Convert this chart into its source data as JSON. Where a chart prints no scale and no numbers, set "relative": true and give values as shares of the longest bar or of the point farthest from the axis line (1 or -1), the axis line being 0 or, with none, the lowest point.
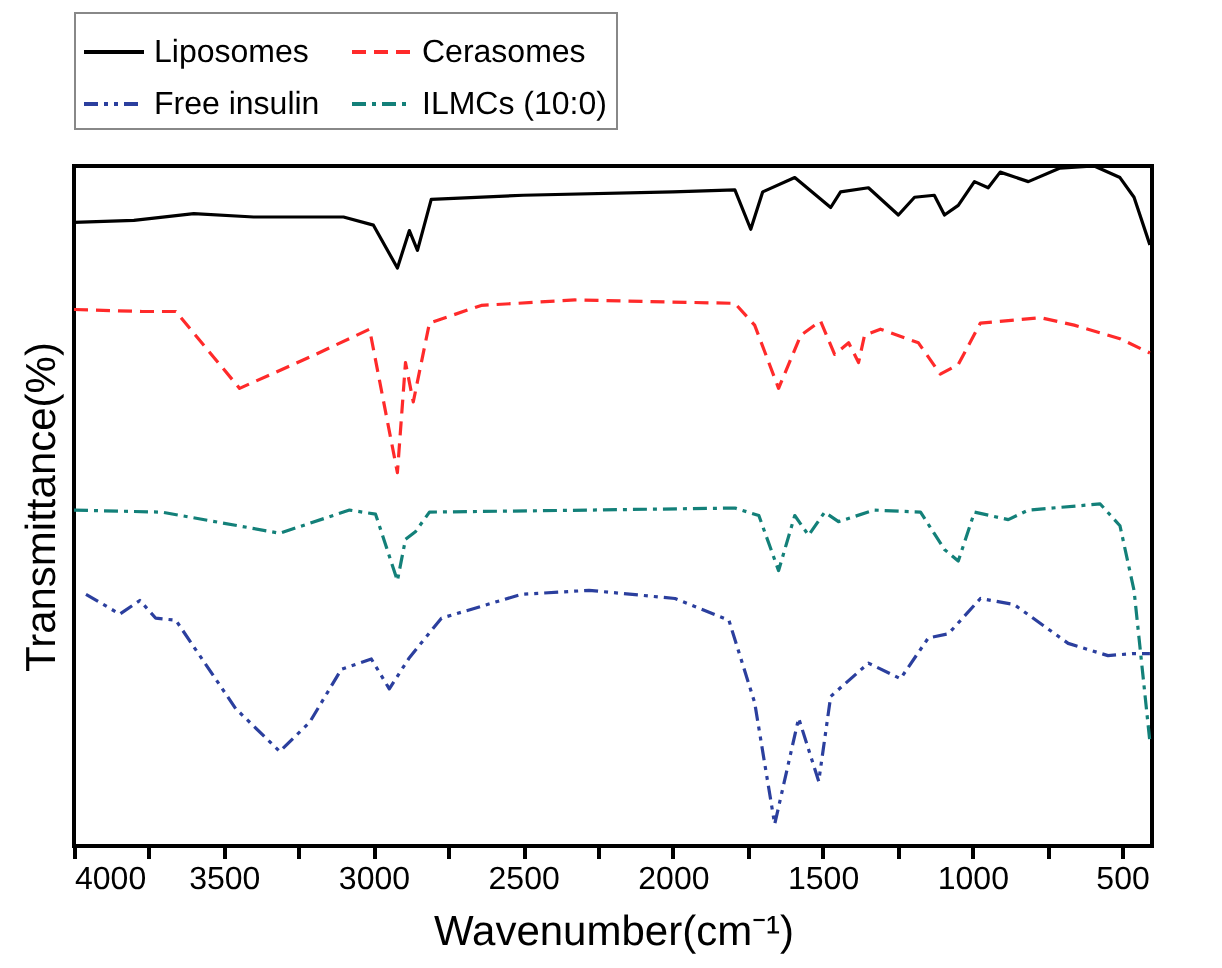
{
  "chart_data": {
    "type": "line",
    "xlabel": "Wavenumber(cm⁻¹)",
    "ylabel": "Transmittance(%)",
    "relative": true,
    "legend": "top",
    "grid": false,
    "xlim": [
      4000,
      400
    ],
    "xticks": [
      4000,
      {
        "value": 3750,
        "label": null
      },
      3500,
      {
        "value": 3250,
        "label": null
      },
      3000,
      {
        "value": 2750,
        "label": null
      },
      2500,
      {
        "value": 2250,
        "label": null
      },
      2000,
      {
        "value": 1750,
        "label": null
      },
      1500,
      {
        "value": 1250,
        "label": null
      },
      1000,
      {
        "value": 750,
        "label": null
      },
      500
    ],
    "series": [
      {
        "name": "Liposomes",
        "color": "#000000",
        "line_style": "solid",
        "x": [
          4000,
          3800,
          3600,
          3400,
          3100,
          3000,
          2920,
          2880,
          2853,
          2807,
          2500,
          2000,
          1793,
          1740,
          1700,
          1593,
          1473,
          1440,
          1347,
          1247,
          1193,
          1127,
          1093,
          1047,
          993,
          947,
          907,
          813,
          707,
          593,
          507,
          460,
          407
        ],
        "values": [
          0.917,
          0.92,
          0.93,
          0.925,
          0.925,
          0.913,
          0.85,
          0.905,
          0.876,
          0.951,
          0.957,
          0.962,
          0.965,
          0.907,
          0.962,
          0.983,
          0.939,
          0.962,
          0.968,
          0.928,
          0.954,
          0.957,
          0.928,
          0.942,
          0.977,
          0.968,
          0.991,
          0.977,
          0.997,
          1,
          0.983,
          0.954,
          0.884
        ]
      },
      {
        "name": "Cerasomes",
        "color": "#ff2a2a",
        "line_style": "dashed",
        "x": [
          4000,
          3773,
          3660,
          3447,
          3193,
          3013,
          2920,
          2893,
          2867,
          2813,
          2640,
          2327,
          1793,
          1727,
          1647,
          1573,
          1507,
          1460,
          1413,
          1380,
          1360,
          1307,
          1180,
          1107,
          1047,
          973,
          773,
          660,
          507,
          407
        ],
        "values": [
          0.789,
          0.786,
          0.786,
          0.673,
          0.723,
          0.76,
          0.549,
          0.711,
          0.653,
          0.769,
          0.795,
          0.803,
          0.798,
          0.766,
          0.673,
          0.751,
          0.772,
          0.723,
          0.74,
          0.711,
          0.751,
          0.76,
          0.74,
          0.694,
          0.708,
          0.769,
          0.777,
          0.766,
          0.746,
          0.725
        ]
      },
      {
        "name": "Free insulin",
        "color": "#2b3f9e",
        "line_style": "dashdotdot",
        "x": [
          3960,
          3847,
          3780,
          3727,
          3660,
          3460,
          3313,
          3213,
          3107,
          3007,
          2947,
          2880,
          2773,
          2507,
          2280,
          1993,
          1813,
          1727,
          1660,
          1580,
          1513,
          1473,
          1347,
          1240,
          1147,
          1080,
          973,
          860,
          680,
          547,
          460,
          407
        ],
        "values": [
          0.37,
          0.341,
          0.361,
          0.335,
          0.332,
          0.202,
          0.139,
          0.182,
          0.26,
          0.275,
          0.231,
          0.277,
          0.335,
          0.37,
          0.376,
          0.364,
          0.332,
          0.211,
          0.032,
          0.188,
          0.095,
          0.22,
          0.269,
          0.246,
          0.306,
          0.312,
          0.364,
          0.355,
          0.298,
          0.28,
          0.283,
          0.283
        ]
      },
      {
        "name": "ILMCs (10:0)",
        "color": "#138079",
        "line_style": "dashdot",
        "x": [
          4000,
          3707,
          3313,
          3080,
          2993,
          2920,
          2893,
          2860,
          2813,
          2280,
          1793,
          1713,
          1647,
          1593,
          1547,
          1493,
          1447,
          1327,
          1173,
          1093,
          1047,
          993,
          880,
          813,
          573,
          507,
          460,
          407
        ],
        "values": [
          0.494,
          0.491,
          0.46,
          0.494,
          0.488,
          0.39,
          0.451,
          0.462,
          0.491,
          0.494,
          0.497,
          0.486,
          0.405,
          0.486,
          0.457,
          0.491,
          0.477,
          0.494,
          0.491,
          0.436,
          0.419,
          0.491,
          0.48,
          0.494,
          0.503,
          0.471,
          0.376,
          0.153
        ]
      }
    ]
  }
}
